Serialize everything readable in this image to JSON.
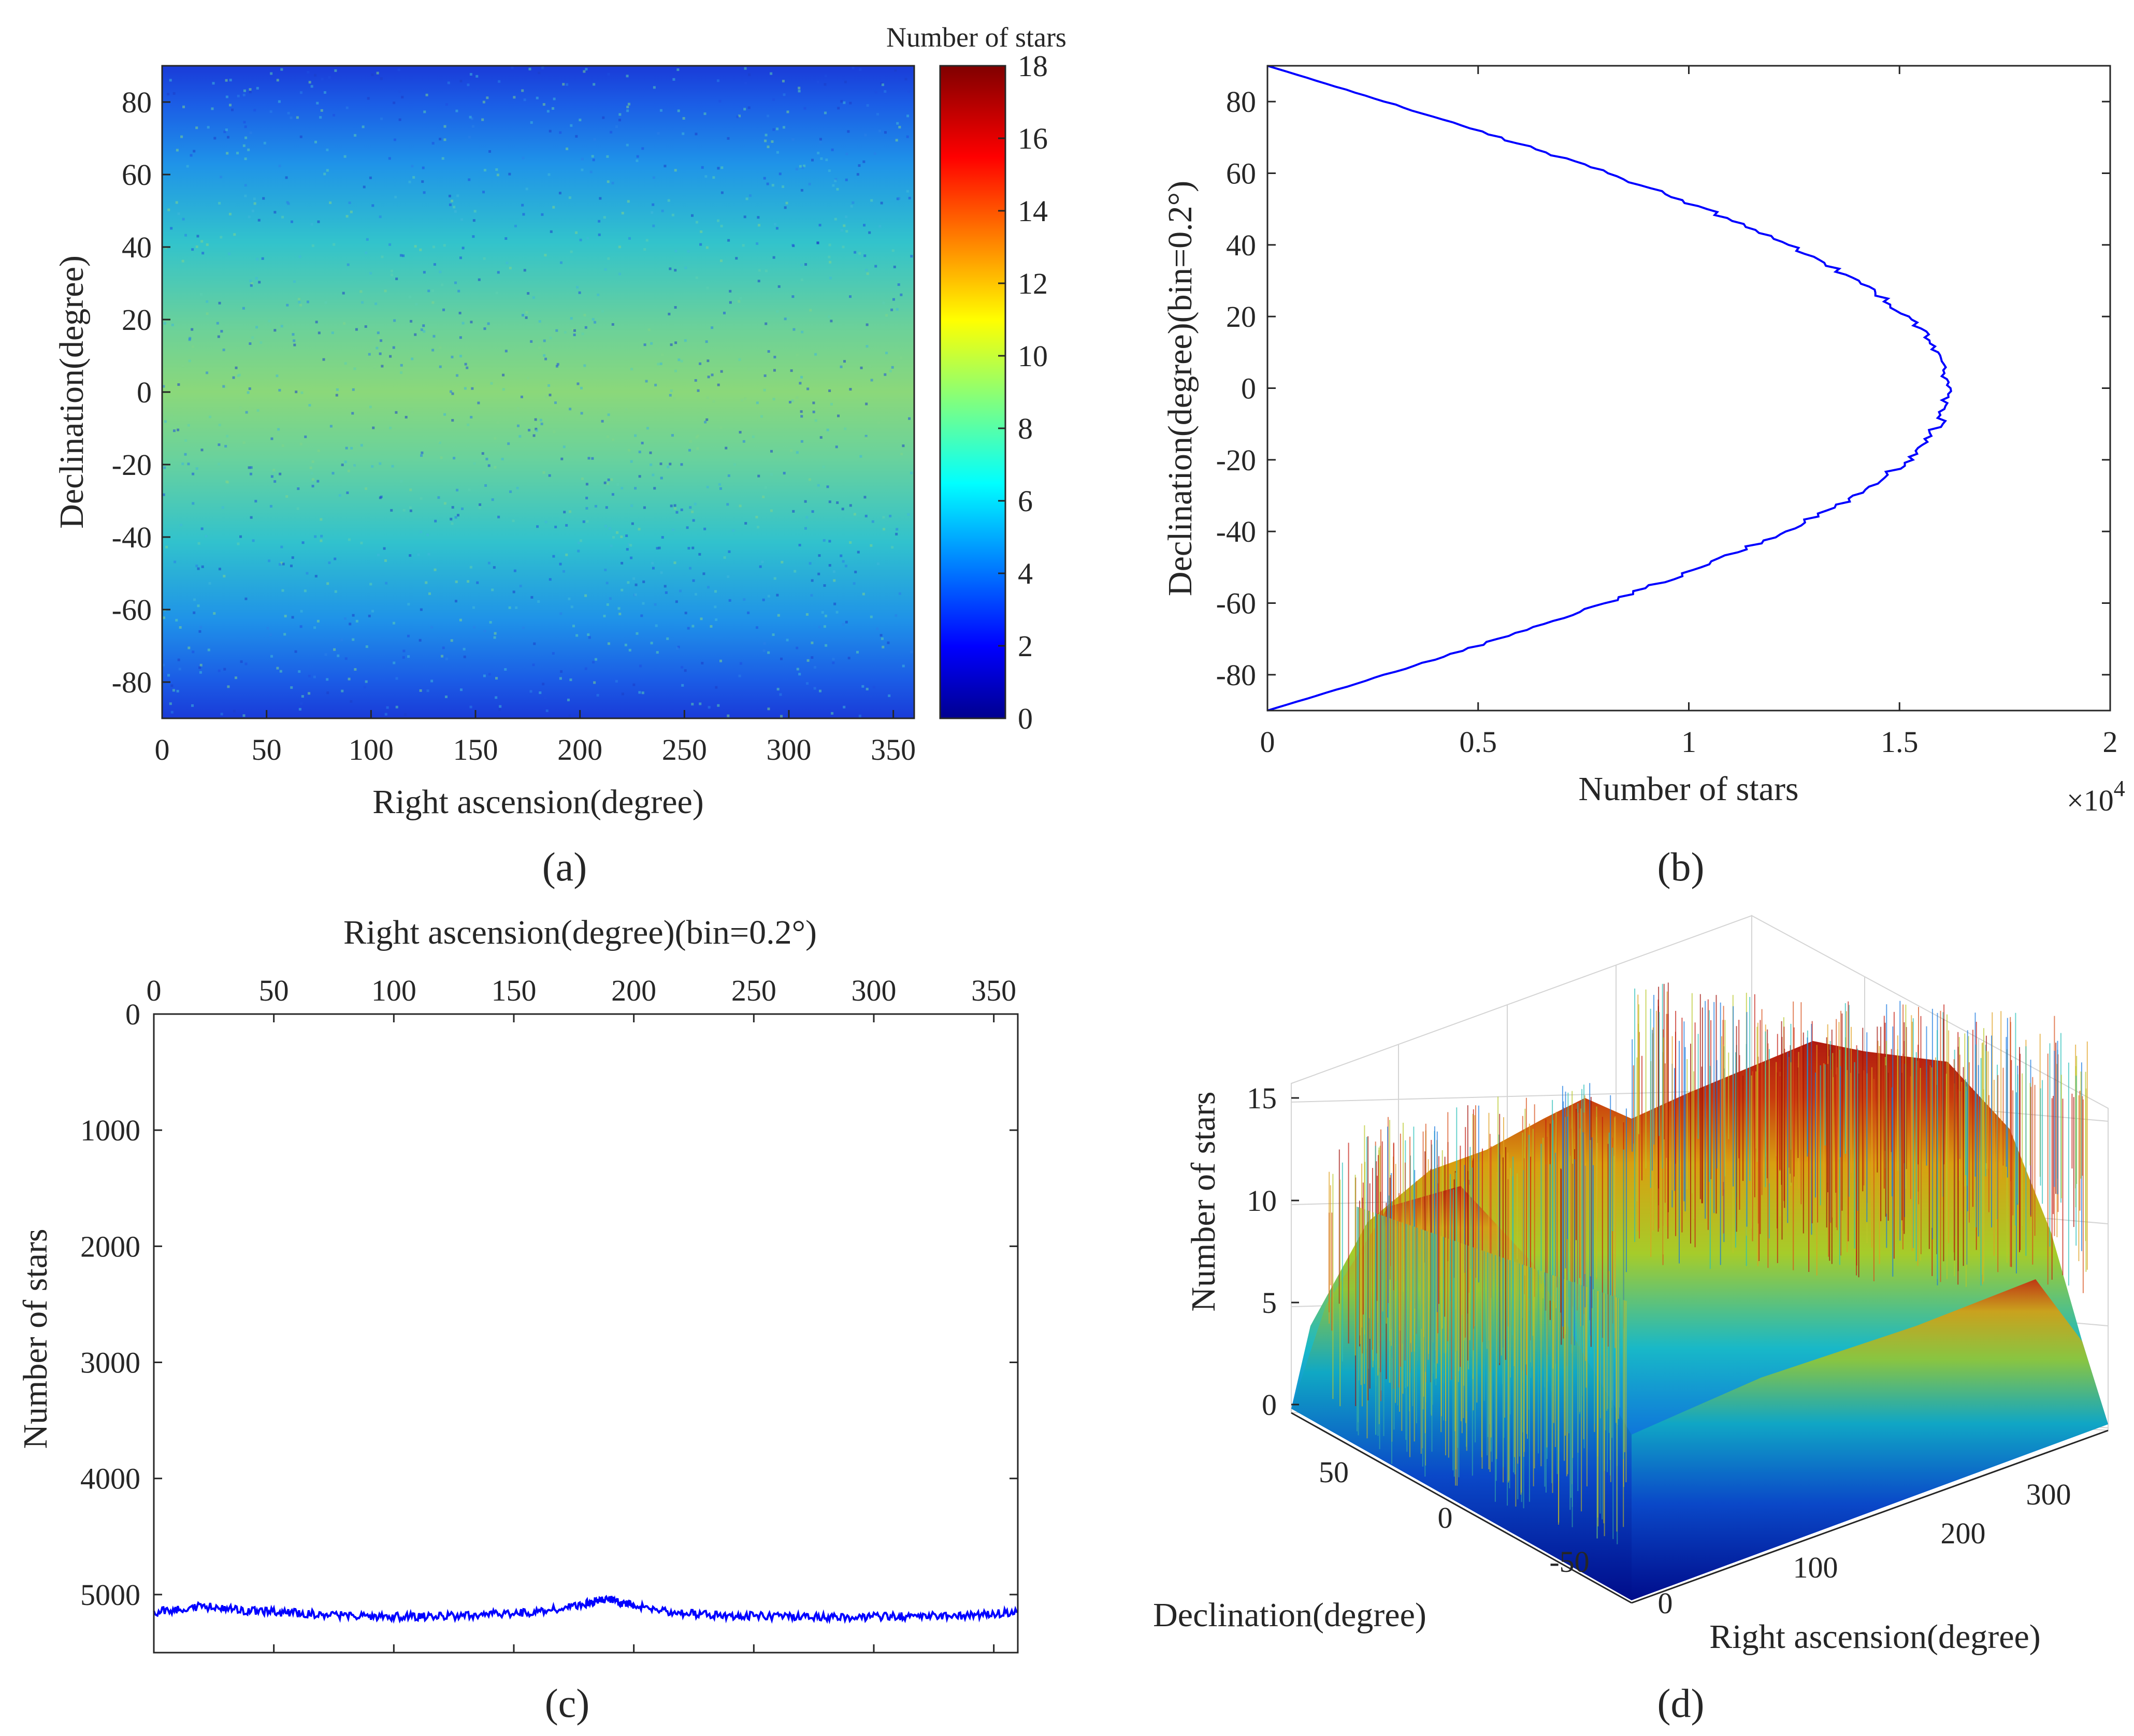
{
  "chart_data": [
    {
      "type": "heatmap",
      "panel_label": "(a)",
      "xlabel": "Right ascension(degree)",
      "ylabel": "Declination(degree)",
      "xlim": [
        0,
        360
      ],
      "ylim": [
        -90,
        90
      ],
      "xticks": [
        "0",
        "50",
        "100",
        "150",
        "200",
        "250",
        "300",
        "350"
      ],
      "yticks": [
        "80",
        "60",
        "40",
        "20",
        "0",
        "-20",
        "-40",
        "-60",
        "-80"
      ],
      "colorbar": {
        "title": "Number of stars",
        "range": [
          0,
          18
        ],
        "ticks": [
          "18",
          "16",
          "14",
          "12",
          "10",
          "8",
          "6",
          "4",
          "2",
          "0"
        ]
      },
      "profile_by_declination": {
        "dec": [
          -90,
          -80,
          -60,
          -40,
          -20,
          0,
          20,
          40,
          60,
          80,
          90
        ],
        "value": [
          2.5,
          3.0,
          5.2,
          7.0,
          8.5,
          9.2,
          8.6,
          7.1,
          5.3,
          3.0,
          2.5
        ]
      },
      "colormap": "jet"
    },
    {
      "type": "line",
      "panel_label": "(b)",
      "xlabel": "Number of stars",
      "ylabel": "Declination(degree)(bin=0.2°)",
      "x_multiplier": "×10",
      "x_multiplier_exp": "4",
      "xlim": [
        0,
        20000
      ],
      "ylim": [
        -90,
        90
      ],
      "xticks": [
        "0",
        "0.5",
        "1",
        "1.5",
        "2"
      ],
      "yticks": [
        "80",
        "60",
        "40",
        "20",
        "0",
        "-20",
        "-40",
        "-60",
        "-80"
      ],
      "series": [
        {
          "color": "#0000ff",
          "y": [
            -90,
            -80,
            -70,
            -60,
            -50,
            -40,
            -30,
            -20,
            -10,
            0,
            10,
            20,
            30,
            40,
            50,
            60,
            70,
            80,
            90
          ],
          "x": [
            0,
            2800,
            5500,
            8000,
            10300,
            12300,
            14000,
            15200,
            15950,
            16200,
            15950,
            15200,
            14000,
            12400,
            10400,
            8100,
            5500,
            2800,
            0
          ]
        }
      ]
    },
    {
      "type": "line",
      "panel_label": "(c)",
      "xlabel": "Right ascension(degree)(bin=0.2°)",
      "ylabel": "Number of stars",
      "xlim": [
        0,
        360
      ],
      "ylim": [
        0,
        5500
      ],
      "y_reversed": true,
      "xticks": [
        "0",
        "50",
        "100",
        "150",
        "200",
        "250",
        "300",
        "350"
      ],
      "yticks": [
        "0",
        "1000",
        "2000",
        "3000",
        "4000",
        "5000"
      ],
      "series": [
        {
          "color": "#0000ff",
          "x": [
            0,
            20,
            40,
            60,
            80,
            100,
            120,
            140,
            160,
            180,
            190,
            200,
            220,
            240,
            260,
            280,
            300,
            320,
            340,
            360
          ],
          "y": [
            5150,
            5100,
            5140,
            5160,
            5180,
            5190,
            5190,
            5170,
            5150,
            5080,
            5040,
            5100,
            5160,
            5180,
            5190,
            5195,
            5190,
            5185,
            5180,
            5150
          ]
        }
      ]
    },
    {
      "type": "bar3d",
      "panel_label": "(d)",
      "xlabel": "Right ascension(degree)",
      "ylabel": "Declination(degree)",
      "zlabel": "Number of stars",
      "zlim": [
        0,
        18
      ],
      "xticks": [
        "0",
        "100",
        "200",
        "300"
      ],
      "yticks": [
        "50",
        "0",
        "-50"
      ],
      "zticks": [
        "0",
        "5",
        "10",
        "15"
      ],
      "colormap": "jet"
    }
  ]
}
